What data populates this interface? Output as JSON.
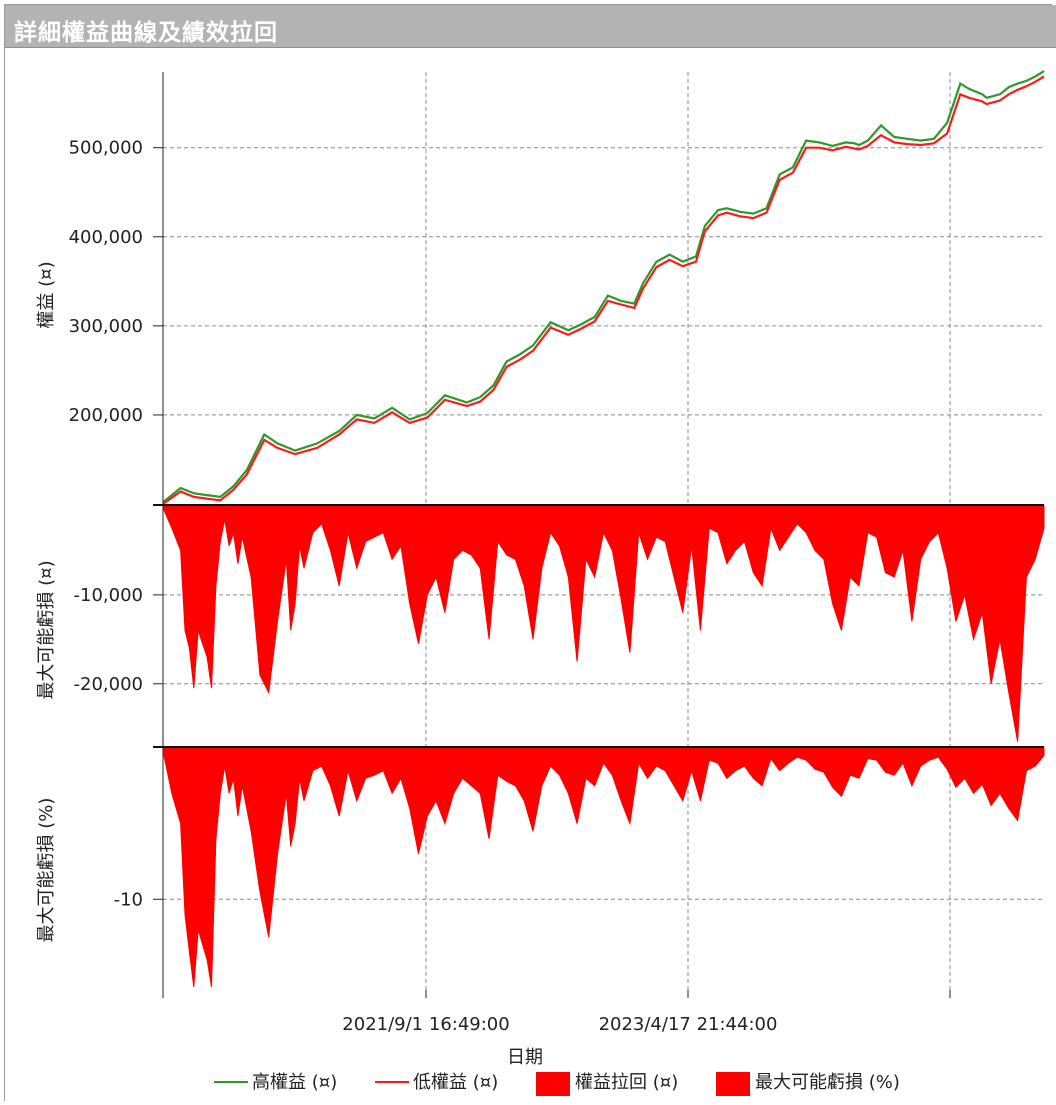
{
  "window": {
    "title": "詳細權益曲線及績效拉回"
  },
  "chart_data": {
    "type": "line+area",
    "xlabel": "日期",
    "x_ticks": [
      "2021/9/1 16:49:00",
      "2023/4/17 21:44:00"
    ],
    "grid": true,
    "legend_placement": "bottom",
    "colors": {
      "high": "#2a9a2a",
      "low": "#ff1a1a",
      "area": "#ff0000"
    },
    "legend": [
      "高權益 (¤)",
      "低權益 (¤)",
      "權益拉回 (¤)",
      "最大可能虧損 (%)"
    ],
    "panels": [
      {
        "id": "equity",
        "ylabel": "權益 (¤)",
        "yticks": [
          "200,000",
          "300,000",
          "400,000",
          "500,000"
        ],
        "ytick_values": [
          200000,
          300000,
          400000,
          500000
        ],
        "ylim": [
          100000,
          585000
        ],
        "series": [
          {
            "name": "高權益 (¤)",
            "type": "line"
          },
          {
            "name": "低權益 (¤)",
            "type": "line"
          }
        ],
        "x": [
          0,
          0.02,
          0.035,
          0.05,
          0.065,
          0.08,
          0.095,
          0.115,
          0.13,
          0.15,
          0.175,
          0.2,
          0.22,
          0.24,
          0.26,
          0.28,
          0.3,
          0.32,
          0.345,
          0.36,
          0.375,
          0.39,
          0.405,
          0.42,
          0.44,
          0.46,
          0.475,
          0.49,
          0.505,
          0.52,
          0.535,
          0.545,
          0.56,
          0.575,
          0.59,
          0.605,
          0.615,
          0.63,
          0.64,
          0.655,
          0.67,
          0.685,
          0.7,
          0.715,
          0.73,
          0.745,
          0.76,
          0.775,
          0.785,
          0.79,
          0.8,
          0.815,
          0.83,
          0.845,
          0.86,
          0.875,
          0.89,
          0.905,
          0.915,
          0.93,
          0.935,
          0.95,
          0.96,
          0.97,
          0.98,
          0.99,
          1.0
        ],
        "high": [
          102000,
          118000,
          112000,
          110000,
          108000,
          120000,
          138000,
          178000,
          168000,
          160000,
          168000,
          182000,
          200000,
          196000,
          208000,
          195000,
          202000,
          222000,
          214000,
          220000,
          233000,
          260000,
          268000,
          278000,
          304000,
          295000,
          302000,
          310000,
          334000,
          328000,
          325000,
          348000,
          372000,
          380000,
          372000,
          378000,
          412000,
          430000,
          432000,
          428000,
          426000,
          432000,
          470000,
          478000,
          508000,
          506000,
          502000,
          506000,
          505000,
          503000,
          508000,
          525000,
          512000,
          510000,
          508000,
          510000,
          528000,
          572000,
          566000,
          560000,
          556000,
          560000,
          568000,
          572000,
          575000,
          580000,
          586000
        ],
        "low": [
          100000,
          114000,
          108000,
          106000,
          104000,
          116000,
          133000,
          172000,
          163000,
          156000,
          163000,
          178000,
          195000,
          191000,
          203000,
          191000,
          197000,
          217000,
          210000,
          215000,
          228000,
          254000,
          262000,
          272000,
          298000,
          290000,
          297000,
          305000,
          328000,
          324000,
          320000,
          342000,
          366000,
          374000,
          367000,
          372000,
          406000,
          424000,
          427000,
          423000,
          421000,
          427000,
          464000,
          472000,
          500000,
          500000,
          497000,
          501000,
          499000,
          498000,
          502000,
          514000,
          506000,
          504000,
          503000,
          505000,
          516000,
          560000,
          556000,
          552000,
          549000,
          553000,
          560000,
          565000,
          569000,
          574000,
          580000
        ]
      },
      {
        "id": "drawdown",
        "ylabel": "最大可能虧損 (¤)",
        "yticks": [
          "-10,000",
          "-20,000"
        ],
        "ytick_values": [
          -10000,
          -20000
        ],
        "ylim": [
          -27000,
          0
        ],
        "series": [
          {
            "name": "權益拉回 (¤)",
            "type": "area"
          }
        ],
        "x": [
          0,
          0.01,
          0.02,
          0.025,
          0.03,
          0.035,
          0.04,
          0.045,
          0.05,
          0.055,
          0.06,
          0.065,
          0.07,
          0.075,
          0.08,
          0.085,
          0.09,
          0.1,
          0.11,
          0.12,
          0.13,
          0.14,
          0.145,
          0.15,
          0.155,
          0.16,
          0.17,
          0.18,
          0.19,
          0.2,
          0.21,
          0.22,
          0.23,
          0.24,
          0.25,
          0.26,
          0.27,
          0.28,
          0.29,
          0.3,
          0.31,
          0.32,
          0.33,
          0.34,
          0.35,
          0.36,
          0.37,
          0.38,
          0.39,
          0.4,
          0.41,
          0.42,
          0.43,
          0.44,
          0.45,
          0.46,
          0.47,
          0.48,
          0.49,
          0.5,
          0.51,
          0.52,
          0.53,
          0.54,
          0.55,
          0.56,
          0.57,
          0.58,
          0.59,
          0.6,
          0.61,
          0.62,
          0.63,
          0.64,
          0.65,
          0.66,
          0.67,
          0.68,
          0.69,
          0.7,
          0.71,
          0.72,
          0.73,
          0.74,
          0.75,
          0.76,
          0.77,
          0.78,
          0.79,
          0.8,
          0.81,
          0.82,
          0.83,
          0.84,
          0.85,
          0.86,
          0.87,
          0.88,
          0.89,
          0.9,
          0.91,
          0.92,
          0.93,
          0.94,
          0.95,
          0.96,
          0.97,
          0.98,
          0.99,
          1.0
        ],
        "values": [
          -200,
          -2500,
          -5000,
          -14000,
          -16000,
          -20500,
          -14000,
          -15500,
          -17000,
          -20500,
          -9000,
          -4000,
          -1500,
          -4500,
          -3000,
          -6500,
          -3500,
          -8000,
          -19000,
          -21000,
          -13000,
          -6000,
          -14000,
          -11000,
          -4500,
          -7000,
          -3000,
          -2000,
          -5000,
          -9000,
          -3000,
          -7000,
          -4000,
          -3500,
          -3000,
          -6000,
          -4500,
          -11000,
          -15500,
          -10000,
          -8000,
          -12000,
          -6000,
          -5000,
          -5500,
          -7000,
          -15000,
          -4000,
          -5500,
          -6000,
          -9000,
          -15000,
          -7000,
          -3000,
          -4500,
          -8000,
          -17500,
          -6000,
          -8000,
          -3000,
          -5000,
          -10500,
          -16500,
          -3000,
          -6000,
          -3500,
          -4000,
          -8000,
          -12000,
          -4500,
          -14000,
          -2500,
          -3000,
          -6500,
          -5000,
          -4000,
          -7500,
          -9000,
          -2500,
          -5000,
          -3500,
          -2000,
          -3000,
          -5000,
          -6000,
          -11000,
          -14000,
          -8000,
          -9000,
          -3000,
          -3500,
          -7500,
          -8000,
          -5000,
          -13000,
          -6000,
          -4000,
          -3000,
          -7000,
          -13000,
          -10000,
          -15000,
          -12000,
          -20000,
          -15000,
          -21000,
          -26500,
          -8000,
          -6000,
          -2500
        ]
      },
      {
        "id": "drawdown_pct",
        "ylabel": "最大可能虧損 (%)",
        "yticks": [
          "-10"
        ],
        "ytick_values": [
          -10
        ],
        "ylim": [
          -16,
          0
        ],
        "series": [
          {
            "name": "最大可能虧損 (%)",
            "type": "area"
          }
        ],
        "x": [
          0,
          0.01,
          0.02,
          0.025,
          0.03,
          0.035,
          0.04,
          0.045,
          0.05,
          0.055,
          0.06,
          0.065,
          0.07,
          0.075,
          0.08,
          0.085,
          0.09,
          0.1,
          0.11,
          0.12,
          0.13,
          0.14,
          0.145,
          0.15,
          0.155,
          0.16,
          0.17,
          0.18,
          0.19,
          0.2,
          0.21,
          0.22,
          0.23,
          0.24,
          0.25,
          0.26,
          0.27,
          0.28,
          0.29,
          0.3,
          0.31,
          0.32,
          0.33,
          0.34,
          0.35,
          0.36,
          0.37,
          0.38,
          0.39,
          0.4,
          0.41,
          0.42,
          0.43,
          0.44,
          0.45,
          0.46,
          0.47,
          0.48,
          0.49,
          0.5,
          0.51,
          0.52,
          0.53,
          0.54,
          0.55,
          0.56,
          0.57,
          0.58,
          0.59,
          0.6,
          0.61,
          0.62,
          0.63,
          0.64,
          0.65,
          0.66,
          0.67,
          0.68,
          0.69,
          0.7,
          0.71,
          0.72,
          0.73,
          0.74,
          0.75,
          0.76,
          0.77,
          0.78,
          0.79,
          0.8,
          0.81,
          0.82,
          0.83,
          0.84,
          0.85,
          0.86,
          0.87,
          0.88,
          0.89,
          0.9,
          0.91,
          0.92,
          0.93,
          0.94,
          0.95,
          0.96,
          0.97,
          0.98,
          0.99,
          1.0
        ],
        "values": [
          -0.2,
          -3,
          -5,
          -11,
          -13.5,
          -15.8,
          -12,
          -13,
          -14,
          -15.8,
          -6,
          -3,
          -1.2,
          -3,
          -2,
          -4.5,
          -2.5,
          -5.5,
          -9.5,
          -12.5,
          -7,
          -3,
          -6.5,
          -5,
          -2,
          -3.5,
          -1.5,
          -1.2,
          -2.5,
          -4.5,
          -1.5,
          -3.5,
          -2,
          -1.8,
          -1.5,
          -3,
          -2,
          -4,
          -7,
          -4.5,
          -3.5,
          -5,
          -3,
          -2,
          -2.5,
          -3,
          -6,
          -1.8,
          -2.2,
          -2.5,
          -3.5,
          -5.5,
          -2.5,
          -1.2,
          -1.8,
          -3,
          -5,
          -2,
          -2.5,
          -1,
          -1.8,
          -3.5,
          -5,
          -1,
          -2,
          -1.2,
          -1.5,
          -2.5,
          -3.5,
          -1.5,
          -3.5,
          -0.8,
          -1,
          -2,
          -1.5,
          -1.2,
          -2,
          -2.5,
          -0.7,
          -1.5,
          -1,
          -0.6,
          -0.8,
          -1.4,
          -1.6,
          -2.6,
          -3.2,
          -1.8,
          -2,
          -0.7,
          -0.8,
          -1.6,
          -1.8,
          -1,
          -2.5,
          -1.2,
          -0.8,
          -0.6,
          -1.4,
          -2.6,
          -2,
          -3,
          -2.4,
          -3.8,
          -3,
          -4,
          -4.8,
          -1.5,
          -1.2,
          -0.5
        ]
      }
    ]
  }
}
